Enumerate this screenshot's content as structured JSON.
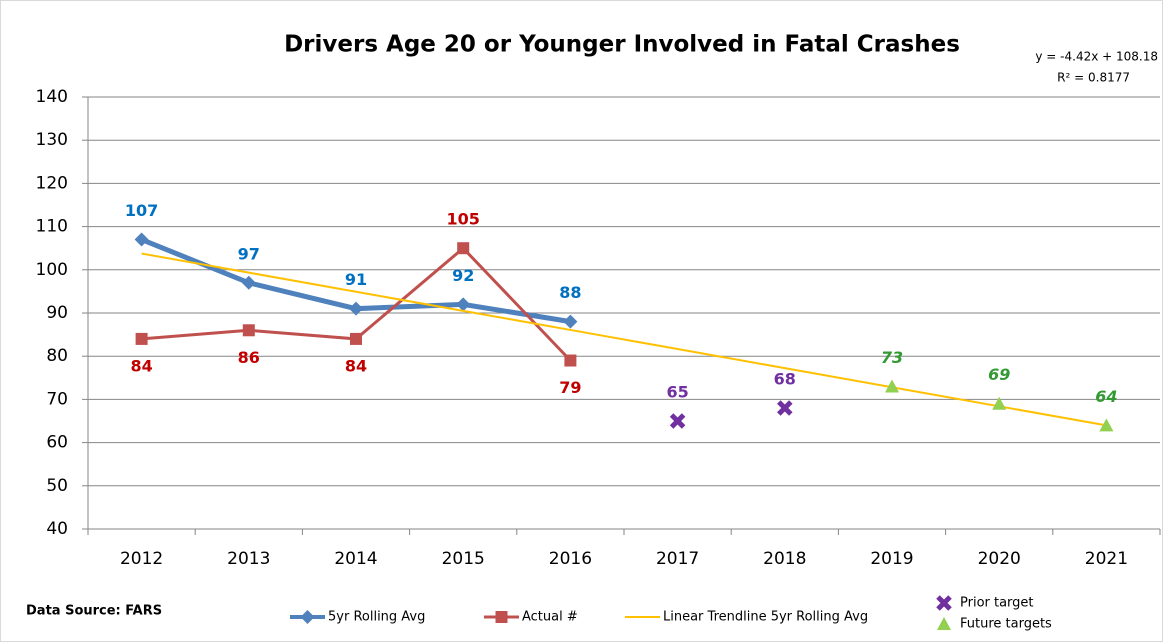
{
  "chart_data": {
    "type": "line",
    "title": "Drivers Age 20 or Younger Involved in Fatal Crashes",
    "annotations": [
      "y = -4.42x + 108.18",
      "R² = 0.8177"
    ],
    "source": "Data Source: FARS",
    "categories": [
      "2012",
      "2013",
      "2014",
      "2015",
      "2016",
      "2017",
      "2018",
      "2019",
      "2020",
      "2021"
    ],
    "ylim": [
      40,
      140
    ],
    "yticks": [
      40,
      50,
      60,
      70,
      80,
      90,
      100,
      110,
      120,
      130,
      140
    ],
    "grid": true,
    "legend": "bottom",
    "series": [
      {
        "name": "5yr Rolling Avg",
        "color": "#4f81bd",
        "label_color": "#0070c0",
        "marker": "diamond",
        "line": true,
        "values": [
          107,
          97,
          91,
          92,
          88,
          null,
          null,
          null,
          null,
          null
        ]
      },
      {
        "name": "Actual #",
        "color": "#c0504d",
        "label_color": "#c00000",
        "marker": "square",
        "line": true,
        "values": [
          84,
          86,
          84,
          105,
          79,
          null,
          null,
          null,
          null,
          null
        ]
      },
      {
        "name": "Linear Trendline 5yr Rolling Avg",
        "color": "#ffc000",
        "marker": "none",
        "line": true,
        "values": [
          103.76,
          99.34,
          94.92,
          90.5,
          86.08,
          81.66,
          77.24,
          72.82,
          68.4,
          63.98
        ]
      },
      {
        "name": "Prior target",
        "color": "#7030a0",
        "label_color": "#7030a0",
        "marker": "x",
        "line": false,
        "values": [
          null,
          null,
          null,
          null,
          null,
          65,
          68,
          null,
          null,
          null
        ]
      },
      {
        "name": "Future targets",
        "color": "#92d050",
        "label_color": "#339933",
        "marker": "triangle",
        "line": false,
        "values": [
          null,
          null,
          null,
          null,
          null,
          null,
          null,
          73,
          69,
          64
        ]
      }
    ]
  }
}
